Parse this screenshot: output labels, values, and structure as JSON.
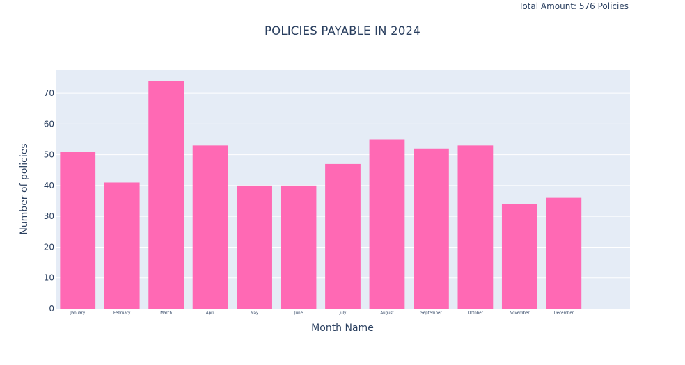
{
  "annotation": "Total Amount: 576 Policies",
  "colors": {
    "bar": "#ff69b4",
    "plot_background": "#e5ecf6",
    "gridline": "#ffffff",
    "text": "#2a3f5f"
  },
  "chart_data": {
    "type": "bar",
    "title": "POLICIES PAYABLE IN 2024",
    "xlabel": "Month Name",
    "ylabel": "Number of policies",
    "categories": [
      "January",
      "February",
      "March",
      "April",
      "May",
      "June",
      "July",
      "August",
      "September",
      "October",
      "November",
      "December"
    ],
    "values": [
      51,
      41,
      74,
      53,
      40,
      40,
      47,
      55,
      52,
      53,
      34,
      36
    ],
    "ylim": [
      0,
      77.7
    ],
    "yticks": [
      0,
      10,
      20,
      30,
      40,
      50,
      60,
      70
    ],
    "grid": true,
    "legend": "none"
  }
}
